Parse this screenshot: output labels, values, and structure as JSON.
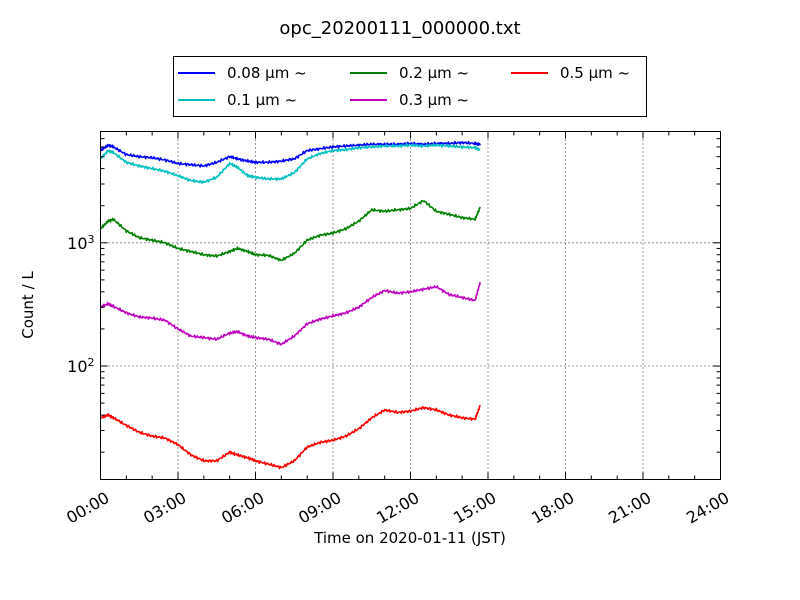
{
  "chart_data": {
    "type": "line",
    "title": "opc_20200111_000000.txt",
    "xlabel": "Time on 2020-01-11 (JST)",
    "ylabel": "Count / L",
    "x_range": [
      "00:00",
      "24:00"
    ],
    "y_scale": "log",
    "ylim": [
      12,
      8000
    ],
    "grid": true,
    "legend_placement": "top-center (above plot)",
    "x_ticks": [
      "00:00",
      "03:00",
      "06:00",
      "09:00",
      "12:00",
      "15:00",
      "18:00",
      "21:00",
      "24:00"
    ],
    "y_ticks": [
      {
        "value": 100,
        "base": "10",
        "exp": "2"
      },
      {
        "value": 1000,
        "base": "10",
        "exp": "3"
      }
    ],
    "x_hours": [
      0,
      0.3,
      0.5,
      1,
      1.5,
      2,
      2.5,
      3,
      3.5,
      4,
      4.5,
      5,
      5.3,
      5.7,
      6,
      6.5,
      7,
      7.5,
      8,
      8.5,
      9,
      9.5,
      10,
      10.5,
      11,
      11.5,
      12,
      12.5,
      13,
      13.5,
      14,
      14.5,
      14.7
    ],
    "series": [
      {
        "name": "0.08 μm ~",
        "color": "#0000ff",
        "values": [
          5600,
          6200,
          6000,
          5200,
          5000,
          4900,
          4700,
          4400,
          4300,
          4200,
          4500,
          5000,
          4800,
          4600,
          4500,
          4500,
          4600,
          4800,
          5600,
          5800,
          6000,
          6100,
          6200,
          6300,
          6300,
          6300,
          6400,
          6300,
          6400,
          6400,
          6500,
          6400,
          6300
        ]
      },
      {
        "name": "0.1 μm ~",
        "color": "#00bfbf",
        "values": [
          4800,
          5600,
          5400,
          4500,
          4200,
          4000,
          3800,
          3500,
          3200,
          3100,
          3400,
          4400,
          4100,
          3500,
          3400,
          3300,
          3300,
          3700,
          4800,
          5300,
          5600,
          5700,
          5900,
          6000,
          6100,
          6100,
          6200,
          6100,
          6200,
          6100,
          6000,
          5900,
          5700
        ]
      },
      {
        "name": "0.2 μm ~",
        "color": "#008000",
        "values": [
          1300,
          1500,
          1550,
          1250,
          1100,
          1050,
          1000,
          900,
          850,
          800,
          780,
          850,
          900,
          850,
          800,
          790,
          720,
          820,
          1050,
          1150,
          1200,
          1300,
          1500,
          1850,
          1800,
          1850,
          1900,
          2200,
          1800,
          1700,
          1600,
          1550,
          1950
        ]
      },
      {
        "name": "0.3 μm ~",
        "color": "#bf00bf",
        "values": [
          300,
          320,
          305,
          270,
          250,
          245,
          235,
          200,
          175,
          170,
          165,
          185,
          190,
          175,
          170,
          165,
          150,
          175,
          220,
          240,
          255,
          270,
          300,
          360,
          410,
          390,
          400,
          420,
          440,
          380,
          360,
          340,
          480
        ]
      },
      {
        "name": "0.5 μm ~",
        "color": "#ff0000",
        "values": [
          38,
          40,
          38,
          33,
          29,
          27,
          26,
          23,
          19,
          17,
          17,
          20,
          19,
          18,
          17,
          16,
          15,
          17,
          22,
          24,
          25,
          27,
          31,
          38,
          44,
          42,
          43,
          46,
          44,
          40,
          38,
          37,
          48
        ]
      }
    ]
  }
}
